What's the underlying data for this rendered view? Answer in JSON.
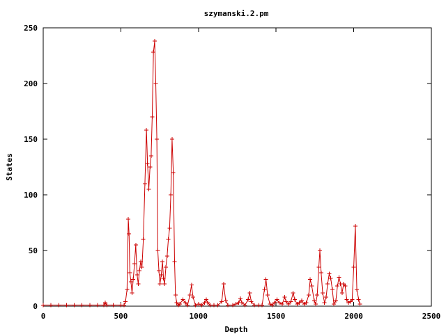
{
  "chart_data": {
    "type": "line",
    "title": "szymanski.2.pm",
    "xlabel": "Depth",
    "ylabel": "States",
    "xlim": [
      0,
      2500
    ],
    "ylim": [
      0,
      250
    ],
    "xticks": [
      0,
      500,
      1000,
      1500,
      2000,
      2500
    ],
    "yticks": [
      0,
      50,
      100,
      150,
      200,
      250
    ],
    "grid": false,
    "legend": "none",
    "marker": "plus",
    "colors": {
      "series": "#cc0000",
      "frame": "#000000",
      "text": "#000000"
    },
    "series": [
      {
        "points": [
          [
            0,
            1
          ],
          [
            50,
            1
          ],
          [
            100,
            1
          ],
          [
            150,
            1
          ],
          [
            200,
            1
          ],
          [
            250,
            1
          ],
          [
            300,
            1
          ],
          [
            350,
            1
          ],
          [
            390,
            1
          ],
          [
            400,
            3
          ],
          [
            410,
            1
          ],
          [
            450,
            1
          ],
          [
            500,
            1
          ],
          [
            520,
            1
          ],
          [
            530,
            4
          ],
          [
            540,
            15
          ],
          [
            548,
            78
          ],
          [
            553,
            65
          ],
          [
            558,
            30
          ],
          [
            565,
            22
          ],
          [
            572,
            12
          ],
          [
            580,
            24
          ],
          [
            588,
            38
          ],
          [
            596,
            55
          ],
          [
            605,
            28
          ],
          [
            612,
            20
          ],
          [
            620,
            32
          ],
          [
            628,
            40
          ],
          [
            636,
            35
          ],
          [
            645,
            60
          ],
          [
            655,
            110
          ],
          [
            665,
            158
          ],
          [
            672,
            128
          ],
          [
            680,
            105
          ],
          [
            688,
            125
          ],
          [
            695,
            135
          ],
          [
            702,
            170
          ],
          [
            710,
            228
          ],
          [
            718,
            238
          ],
          [
            725,
            200
          ],
          [
            732,
            150
          ],
          [
            738,
            50
          ],
          [
            745,
            32
          ],
          [
            752,
            20
          ],
          [
            760,
            28
          ],
          [
            768,
            40
          ],
          [
            775,
            25
          ],
          [
            782,
            20
          ],
          [
            790,
            35
          ],
          [
            798,
            45
          ],
          [
            806,
            60
          ],
          [
            814,
            70
          ],
          [
            822,
            100
          ],
          [
            830,
            150
          ],
          [
            838,
            120
          ],
          [
            846,
            40
          ],
          [
            852,
            10
          ],
          [
            860,
            3
          ],
          [
            870,
            1
          ],
          [
            880,
            2
          ],
          [
            900,
            6
          ],
          [
            915,
            3
          ],
          [
            930,
            1
          ],
          [
            945,
            10
          ],
          [
            955,
            19
          ],
          [
            965,
            8
          ],
          [
            980,
            1
          ],
          [
            1000,
            2
          ],
          [
            1020,
            1
          ],
          [
            1040,
            3
          ],
          [
            1050,
            6
          ],
          [
            1060,
            3
          ],
          [
            1075,
            1
          ],
          [
            1100,
            1
          ],
          [
            1125,
            1
          ],
          [
            1150,
            4
          ],
          [
            1162,
            20
          ],
          [
            1175,
            5
          ],
          [
            1190,
            1
          ],
          [
            1220,
            1
          ],
          [
            1240,
            2
          ],
          [
            1260,
            3
          ],
          [
            1270,
            7
          ],
          [
            1280,
            3
          ],
          [
            1300,
            1
          ],
          [
            1320,
            6
          ],
          [
            1330,
            12
          ],
          [
            1340,
            4
          ],
          [
            1360,
            1
          ],
          [
            1390,
            1
          ],
          [
            1410,
            1
          ],
          [
            1425,
            15
          ],
          [
            1435,
            24
          ],
          [
            1445,
            10
          ],
          [
            1460,
            2
          ],
          [
            1475,
            1
          ],
          [
            1490,
            3
          ],
          [
            1505,
            6
          ],
          [
            1520,
            3
          ],
          [
            1540,
            2
          ],
          [
            1555,
            8
          ],
          [
            1565,
            4
          ],
          [
            1580,
            2
          ],
          [
            1595,
            4
          ],
          [
            1610,
            12
          ],
          [
            1620,
            6
          ],
          [
            1635,
            2
          ],
          [
            1650,
            3
          ],
          [
            1665,
            5
          ],
          [
            1680,
            2
          ],
          [
            1695,
            3
          ],
          [
            1710,
            10
          ],
          [
            1720,
            24
          ],
          [
            1730,
            18
          ],
          [
            1745,
            5
          ],
          [
            1755,
            2
          ],
          [
            1765,
            10
          ],
          [
            1775,
            35
          ],
          [
            1782,
            50
          ],
          [
            1790,
            30
          ],
          [
            1800,
            12
          ],
          [
            1812,
            3
          ],
          [
            1822,
            8
          ],
          [
            1832,
            20
          ],
          [
            1842,
            29
          ],
          [
            1852,
            25
          ],
          [
            1862,
            15
          ],
          [
            1872,
            2
          ],
          [
            1885,
            5
          ],
          [
            1895,
            18
          ],
          [
            1905,
            26
          ],
          [
            1915,
            20
          ],
          [
            1925,
            12
          ],
          [
            1935,
            20
          ],
          [
            1945,
            18
          ],
          [
            1955,
            6
          ],
          [
            1965,
            3
          ],
          [
            1980,
            4
          ],
          [
            1990,
            6
          ],
          [
            2000,
            35
          ],
          [
            2010,
            72
          ],
          [
            2020,
            15
          ],
          [
            2032,
            6
          ],
          [
            2040,
            2
          ]
        ]
      }
    ]
  }
}
